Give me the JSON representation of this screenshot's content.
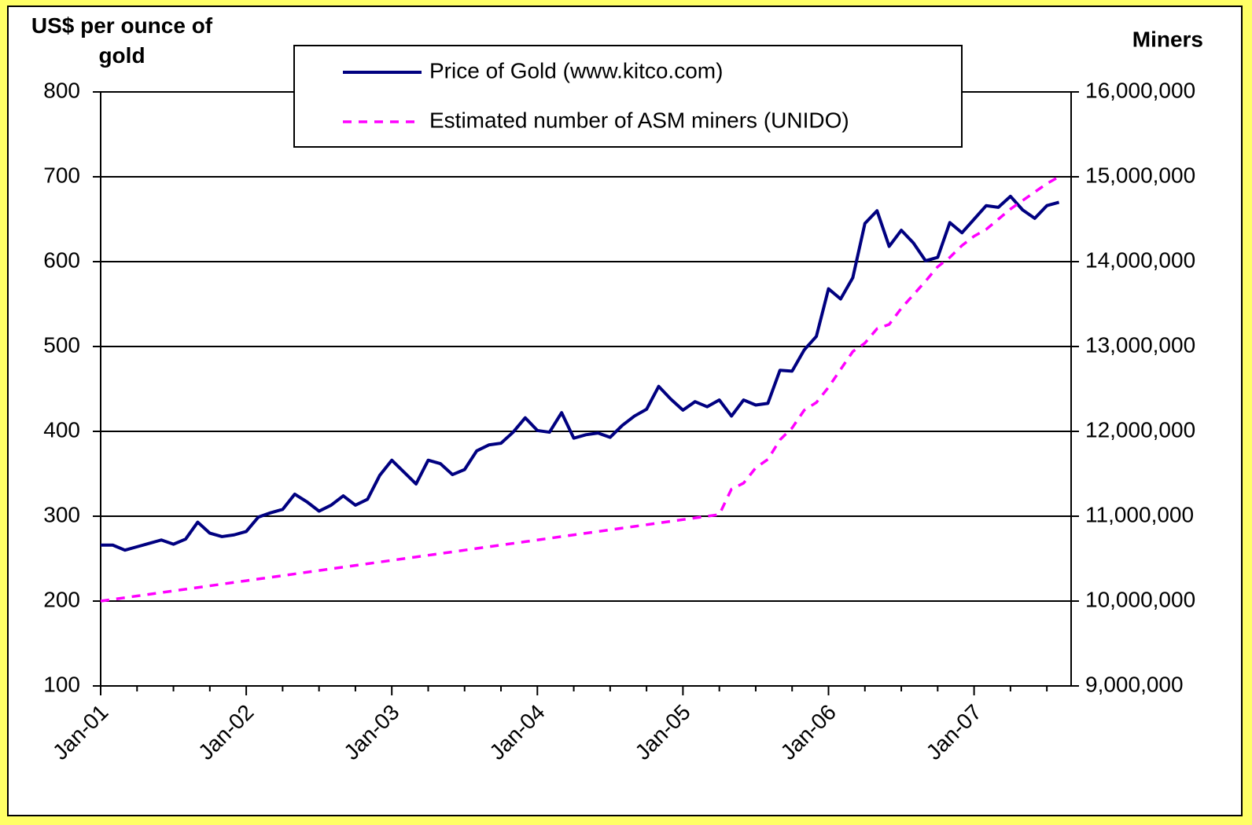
{
  "chart_data": {
    "type": "line",
    "y_label": "US$ per ounce of gold",
    "y2_label": "Miners",
    "x": [
      "2001-01",
      "2001-02",
      "2001-03",
      "2001-04",
      "2001-05",
      "2001-06",
      "2001-07",
      "2001-08",
      "2001-09",
      "2001-10",
      "2001-11",
      "2001-12",
      "2002-01",
      "2002-02",
      "2002-03",
      "2002-04",
      "2002-05",
      "2002-06",
      "2002-07",
      "2002-08",
      "2002-09",
      "2002-10",
      "2002-11",
      "2002-12",
      "2003-01",
      "2003-02",
      "2003-03",
      "2003-04",
      "2003-05",
      "2003-06",
      "2003-07",
      "2003-08",
      "2003-09",
      "2003-10",
      "2003-11",
      "2003-12",
      "2004-01",
      "2004-02",
      "2004-03",
      "2004-04",
      "2004-05",
      "2004-06",
      "2004-07",
      "2004-08",
      "2004-09",
      "2004-10",
      "2004-11",
      "2004-12",
      "2005-01",
      "2005-02",
      "2005-03",
      "2005-04",
      "2005-05",
      "2005-06",
      "2005-07",
      "2005-08",
      "2005-09",
      "2005-10",
      "2005-11",
      "2005-12",
      "2006-01",
      "2006-02",
      "2006-03",
      "2006-04",
      "2006-05",
      "2006-06",
      "2006-07",
      "2006-08",
      "2006-09",
      "2006-10",
      "2006-11",
      "2006-12",
      "2007-01",
      "2007-02",
      "2007-03",
      "2007-04",
      "2007-05",
      "2007-06",
      "2007-07",
      "2007-08"
    ],
    "series": [
      {
        "name": "Price of Gold (www.kitco.com)",
        "color": "#000080",
        "dash": false,
        "values": [
          266,
          266,
          260,
          264,
          268,
          272,
          267,
          273,
          293,
          280,
          276,
          278,
          282,
          299,
          304,
          308,
          326,
          317,
          306,
          313,
          324,
          313,
          320,
          348,
          366,
          352,
          338,
          366,
          362,
          349,
          355,
          377,
          384,
          386,
          399,
          416,
          401,
          399,
          422,
          392,
          396,
          398,
          393,
          407,
          418,
          426,
          453,
          438,
          425,
          435,
          429,
          437,
          418,
          437,
          431,
          433,
          472,
          471,
          496,
          512,
          568,
          556,
          581,
          645,
          660,
          618,
          637,
          622,
          601,
          605,
          646,
          634,
          650,
          666,
          664,
          677,
          661,
          651,
          666,
          670
        ]
      },
      {
        "name": "Estimated number of ASM miners (UNIDO)",
        "color": "#ff00ff",
        "dash": true,
        "axis": "y2",
        "values": [
          10000000,
          10020000,
          10040000,
          10060000,
          10080000,
          10100000,
          10120000,
          10140000,
          10160000,
          10180000,
          10200000,
          10220000,
          10240000,
          10260000,
          10280000,
          10300000,
          10320000,
          10340000,
          10360000,
          10380000,
          10400000,
          10420000,
          10440000,
          10460000,
          10480000,
          10500000,
          10520000,
          10540000,
          10560000,
          10580000,
          10600000,
          10620000,
          10640000,
          10660000,
          10680000,
          10700000,
          10720000,
          10740000,
          10760000,
          10780000,
          10800000,
          10820000,
          10840000,
          10860000,
          10880000,
          10900000,
          10920000,
          10940000,
          10960000,
          10980000,
          11000000,
          11020000,
          11320000,
          11390000,
          11570000,
          11670000,
          11900000,
          12040000,
          12250000,
          12340000,
          12520000,
          12730000,
          12940000,
          13040000,
          13210000,
          13260000,
          13450000,
          13610000,
          13770000,
          13940000,
          14050000,
          14190000,
          14300000,
          14380000,
          14500000,
          14620000,
          14720000,
          14820000,
          14920000,
          15000000
        ]
      }
    ],
    "xlim": [
      "2001-01",
      "2007-09"
    ],
    "xticks": [
      {
        "value": "2001-01",
        "label": "Jan-01"
      },
      {
        "value": "2002-01",
        "label": "Jan-02"
      },
      {
        "value": "2003-01",
        "label": "Jan-03"
      },
      {
        "value": "2004-01",
        "label": "Jan-04"
      },
      {
        "value": "2005-01",
        "label": "Jan-05"
      },
      {
        "value": "2006-01",
        "label": "Jan-06"
      },
      {
        "value": "2007-01",
        "label": "Jan-07"
      }
    ],
    "xminorticks": [
      "2001-04",
      "2001-07",
      "2001-10",
      "2002-04",
      "2002-07",
      "2002-10",
      "2003-04",
      "2003-07",
      "2003-10",
      "2004-04",
      "2004-07",
      "2004-10",
      "2005-04",
      "2005-07",
      "2005-10",
      "2006-04",
      "2006-07",
      "2006-10",
      "2007-04",
      "2007-07"
    ],
    "ylim": [
      100,
      800
    ],
    "yticks": [
      100,
      200,
      300,
      400,
      500,
      600,
      700,
      800
    ],
    "y2lim": [
      9000000,
      16000000
    ],
    "y2ticks": [
      {
        "value": 9000000,
        "label": "9,000,000"
      },
      {
        "value": 10000000,
        "label": "10,000,000"
      },
      {
        "value": 11000000,
        "label": "11,000,000"
      },
      {
        "value": 12000000,
        "label": "12,000,000"
      },
      {
        "value": 13000000,
        "label": "13,000,000"
      },
      {
        "value": 14000000,
        "label": "14,000,000"
      },
      {
        "value": 15000000,
        "label": "15,000,000"
      },
      {
        "value": 16000000,
        "label": "16,000,000"
      }
    ],
    "grid": true,
    "legend": "top"
  }
}
